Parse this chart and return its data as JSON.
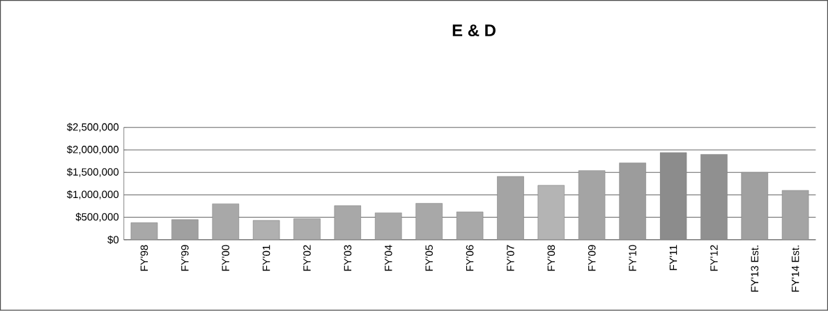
{
  "chart_data": {
    "type": "bar",
    "title": "E & D",
    "categories": [
      "FY'98",
      "FY'99",
      "FY'00",
      "FY'01",
      "FY'02",
      "FY'03",
      "FY'04",
      "FY'05",
      "FY'06",
      "FY'07",
      "FY'08",
      "FY'09",
      "FY'10",
      "FY'11",
      "FY'12",
      "FY'13 Est.",
      "FY'14 Est."
    ],
    "values": [
      380000,
      450000,
      800000,
      430000,
      470000,
      760000,
      600000,
      810000,
      620000,
      1410000,
      1210000,
      1540000,
      1710000,
      1940000,
      1900000,
      1500000,
      1100000
    ],
    "colors": [
      "#a8a8a8",
      "#a0a0a0",
      "#a8a8a8",
      "#b0b0b0",
      "#acacac",
      "#a8a8a8",
      "#a8a8a8",
      "#a8a8a8",
      "#a8a8a8",
      "#a4a4a4",
      "#b4b4b4",
      "#a4a4a4",
      "#9c9c9c",
      "#8c8c8c",
      "#909090",
      "#a0a0a0",
      "#a4a4a4"
    ],
    "ylim": [
      0,
      2500000
    ],
    "yticks": [
      {
        "value": 0,
        "label": "$0"
      },
      {
        "value": 500000,
        "label": "$500,000"
      },
      {
        "value": 1000000,
        "label": "$1,000,000"
      },
      {
        "value": 1500000,
        "label": "$1,500,000"
      },
      {
        "value": 2000000,
        "label": "$2,000,000"
      },
      {
        "value": 2500000,
        "label": "$2,500,000"
      }
    ],
    "grid": "y"
  }
}
